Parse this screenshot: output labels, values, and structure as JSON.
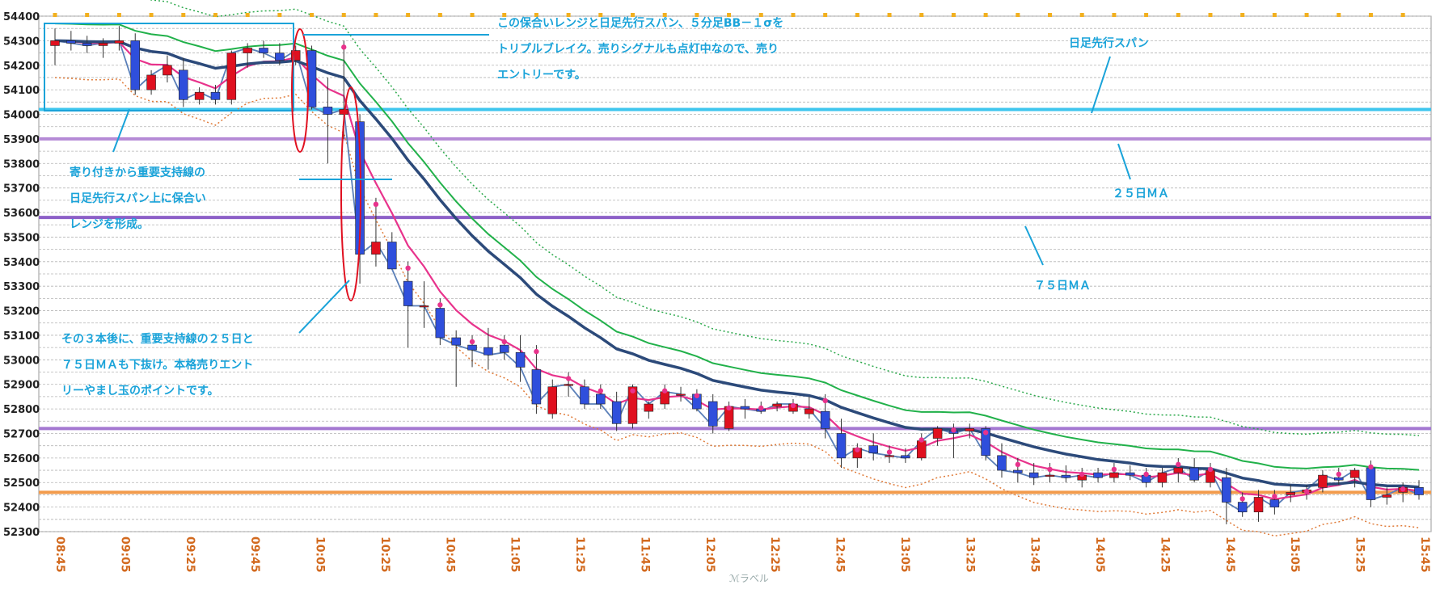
{
  "chart_data": {
    "type": "candlestick",
    "ylim": [
      52300,
      54400
    ],
    "y_ticks": [
      54400,
      54300,
      54200,
      54100,
      54000,
      53900,
      53800,
      53700,
      53600,
      53500,
      53400,
      53300,
      53200,
      53100,
      53000,
      52900,
      52800,
      52700,
      52600,
      52500,
      52400,
      52300
    ],
    "x_ticks": [
      "08:45",
      "09:05",
      "09:25",
      "09:45",
      "10:05",
      "10:25",
      "10:45",
      "11:05",
      "11:25",
      "11:45",
      "12:05",
      "12:25",
      "12:45",
      "13:05",
      "13:25",
      "13:45",
      "14:05",
      "14:25",
      "14:45",
      "15:05",
      "15:25",
      "15:45"
    ],
    "horizontal_lines": [
      {
        "name": "日足先行スパン",
        "value": 54020,
        "color": "#3ec6ee"
      },
      {
        "name": "25日MA",
        "value": 53900,
        "color": "#b58ad6"
      },
      {
        "name": "75日MA",
        "value": 53580,
        "color": "#8c5fc7"
      },
      {
        "name": "",
        "value": 52720,
        "color": "#a478d1"
      },
      {
        "name": "",
        "value": 52460,
        "color": "#f29b4c"
      }
    ],
    "candles": [
      {
        "o": 54280,
        "h": 54350,
        "l": 54200,
        "c": 54300
      },
      {
        "o": 54300,
        "h": 54340,
        "l": 54260,
        "c": 54290
      },
      {
        "o": 54290,
        "h": 54320,
        "l": 54250,
        "c": 54280
      },
      {
        "o": 54280,
        "h": 54310,
        "l": 54230,
        "c": 54290
      },
      {
        "o": 54290,
        "h": 54360,
        "l": 54260,
        "c": 54300
      },
      {
        "o": 54300,
        "h": 54330,
        "l": 54080,
        "c": 54100
      },
      {
        "o": 54100,
        "h": 54180,
        "l": 54080,
        "c": 54160
      },
      {
        "o": 54160,
        "h": 54240,
        "l": 54130,
        "c": 54200
      },
      {
        "o": 54180,
        "h": 54230,
        "l": 54030,
        "c": 54060
      },
      {
        "o": 54060,
        "h": 54110,
        "l": 54040,
        "c": 54090
      },
      {
        "o": 54090,
        "h": 54120,
        "l": 54040,
        "c": 54060
      },
      {
        "o": 54060,
        "h": 54260,
        "l": 54040,
        "c": 54250
      },
      {
        "o": 54250,
        "h": 54290,
        "l": 54190,
        "c": 54270
      },
      {
        "o": 54270,
        "h": 54300,
        "l": 54230,
        "c": 54250
      },
      {
        "o": 54250,
        "h": 54290,
        "l": 54200,
        "c": 54220
      },
      {
        "o": 54220,
        "h": 54280,
        "l": 54200,
        "c": 54260
      },
      {
        "o": 54260,
        "h": 54280,
        "l": 54020,
        "c": 54030
      },
      {
        "o": 54030,
        "h": 54150,
        "l": 53800,
        "c": 54000
      },
      {
        "o": 54000,
        "h": 54300,
        "l": 53900,
        "c": 54020
      },
      {
        "o": 53970,
        "h": 54000,
        "l": 53310,
        "c": 53430
      },
      {
        "o": 53430,
        "h": 53660,
        "l": 53380,
        "c": 53480
      },
      {
        "o": 53480,
        "h": 53520,
        "l": 53370,
        "c": 53370
      },
      {
        "o": 53320,
        "h": 53400,
        "l": 53050,
        "c": 53220
      },
      {
        "o": 53220,
        "h": 53320,
        "l": 53130,
        "c": 53220
      },
      {
        "o": 53210,
        "h": 53250,
        "l": 53060,
        "c": 53090
      },
      {
        "o": 53090,
        "h": 53120,
        "l": 52890,
        "c": 53060
      },
      {
        "o": 53060,
        "h": 53100,
        "l": 52970,
        "c": 53040
      },
      {
        "o": 53050,
        "h": 53130,
        "l": 52960,
        "c": 53020
      },
      {
        "o": 53060,
        "h": 53100,
        "l": 53000,
        "c": 53030
      },
      {
        "o": 53030,
        "h": 53100,
        "l": 52910,
        "c": 52970
      },
      {
        "o": 52960,
        "h": 53060,
        "l": 52780,
        "c": 52820
      },
      {
        "o": 52780,
        "h": 52920,
        "l": 52760,
        "c": 52890
      },
      {
        "o": 52900,
        "h": 52950,
        "l": 52850,
        "c": 52900
      },
      {
        "o": 52890,
        "h": 52920,
        "l": 52800,
        "c": 52820
      },
      {
        "o": 52860,
        "h": 52900,
        "l": 52800,
        "c": 52820
      },
      {
        "o": 52830,
        "h": 52870,
        "l": 52710,
        "c": 52740
      },
      {
        "o": 52740,
        "h": 52900,
        "l": 52720,
        "c": 52890
      },
      {
        "o": 52790,
        "h": 52830,
        "l": 52760,
        "c": 52820
      },
      {
        "o": 52820,
        "h": 52900,
        "l": 52800,
        "c": 52870
      },
      {
        "o": 52860,
        "h": 52890,
        "l": 52830,
        "c": 52860
      },
      {
        "o": 52860,
        "h": 52880,
        "l": 52790,
        "c": 52800
      },
      {
        "o": 52830,
        "h": 52860,
        "l": 52700,
        "c": 52730
      },
      {
        "o": 52720,
        "h": 52830,
        "l": 52710,
        "c": 52810
      },
      {
        "o": 52810,
        "h": 52840,
        "l": 52760,
        "c": 52800
      },
      {
        "o": 52800,
        "h": 52830,
        "l": 52780,
        "c": 52790
      },
      {
        "o": 52810,
        "h": 52830,
        "l": 52790,
        "c": 52820
      },
      {
        "o": 52790,
        "h": 52840,
        "l": 52780,
        "c": 52820
      },
      {
        "o": 52780,
        "h": 52850,
        "l": 52760,
        "c": 52800
      },
      {
        "o": 52790,
        "h": 52860,
        "l": 52680,
        "c": 52720
      },
      {
        "o": 52700,
        "h": 52760,
        "l": 52560,
        "c": 52600
      },
      {
        "o": 52600,
        "h": 52660,
        "l": 52560,
        "c": 52640
      },
      {
        "o": 52650,
        "h": 52700,
        "l": 52590,
        "c": 52620
      },
      {
        "o": 52610,
        "h": 52650,
        "l": 52580,
        "c": 52610
      },
      {
        "o": 52610,
        "h": 52640,
        "l": 52580,
        "c": 52600
      },
      {
        "o": 52600,
        "h": 52700,
        "l": 52590,
        "c": 52670
      },
      {
        "o": 52680,
        "h": 52730,
        "l": 52650,
        "c": 52720
      },
      {
        "o": 52710,
        "h": 52740,
        "l": 52600,
        "c": 52700
      },
      {
        "o": 52710,
        "h": 52740,
        "l": 52680,
        "c": 52720
      },
      {
        "o": 52720,
        "h": 52730,
        "l": 52590,
        "c": 52610
      },
      {
        "o": 52610,
        "h": 52660,
        "l": 52520,
        "c": 52550
      },
      {
        "o": 52550,
        "h": 52600,
        "l": 52500,
        "c": 52540
      },
      {
        "o": 52540,
        "h": 52580,
        "l": 52490,
        "c": 52520
      },
      {
        "o": 52530,
        "h": 52580,
        "l": 52500,
        "c": 52530
      },
      {
        "o": 52530,
        "h": 52570,
        "l": 52500,
        "c": 52520
      },
      {
        "o": 52510,
        "h": 52560,
        "l": 52480,
        "c": 52530
      },
      {
        "o": 52540,
        "h": 52560,
        "l": 52500,
        "c": 52520
      },
      {
        "o": 52520,
        "h": 52580,
        "l": 52500,
        "c": 52540
      },
      {
        "o": 52540,
        "h": 52570,
        "l": 52510,
        "c": 52530
      },
      {
        "o": 52530,
        "h": 52560,
        "l": 52480,
        "c": 52500
      },
      {
        "o": 52500,
        "h": 52560,
        "l": 52480,
        "c": 52540
      },
      {
        "o": 52540,
        "h": 52600,
        "l": 52500,
        "c": 52560
      },
      {
        "o": 52560,
        "h": 52600,
        "l": 52500,
        "c": 52510
      },
      {
        "o": 52500,
        "h": 52580,
        "l": 52480,
        "c": 52550
      },
      {
        "o": 52520,
        "h": 52560,
        "l": 52330,
        "c": 52420
      },
      {
        "o": 52420,
        "h": 52460,
        "l": 52360,
        "c": 52380
      },
      {
        "o": 52380,
        "h": 52470,
        "l": 52340,
        "c": 52440
      },
      {
        "o": 52430,
        "h": 52470,
        "l": 52370,
        "c": 52400
      },
      {
        "o": 52450,
        "h": 52490,
        "l": 52420,
        "c": 52460
      },
      {
        "o": 52460,
        "h": 52490,
        "l": 52430,
        "c": 52470
      },
      {
        "o": 52480,
        "h": 52550,
        "l": 52460,
        "c": 52530
      },
      {
        "o": 52520,
        "h": 52560,
        "l": 52490,
        "c": 52510
      },
      {
        "o": 52520,
        "h": 52560,
        "l": 52480,
        "c": 52550
      },
      {
        "o": 52560,
        "h": 52590,
        "l": 52400,
        "c": 52430
      },
      {
        "o": 52440,
        "h": 52480,
        "l": 52410,
        "c": 52450
      },
      {
        "o": 52460,
        "h": 52500,
        "l": 52420,
        "c": 52480
      },
      {
        "o": 52480,
        "h": 52510,
        "l": 52430,
        "c": 52450
      }
    ],
    "annotations": [
      {
        "lines": [
          "この保合いレンジと日足先行スパン、５分足BB－１σを",
          "トリプルブレイク。売りシグナルも点灯中なので、売り",
          "エントリーです。"
        ]
      },
      {
        "lines": [
          "日足先行スパン"
        ]
      },
      {
        "lines": [
          "寄り付きから重要支持線の",
          "日足先行スパン上に保合い",
          "レンジを形成。"
        ]
      },
      {
        "lines": [
          "２５日ＭＡ"
        ]
      },
      {
        "lines": [
          "７５日ＭＡ"
        ]
      },
      {
        "lines": [
          "その３本後に、重要支持線の２５日と",
          "７５日ＭＡも下抜け。本格売りエント",
          "リーやまし玉のポイントです。"
        ]
      }
    ],
    "watermark": "ℳラべル"
  }
}
